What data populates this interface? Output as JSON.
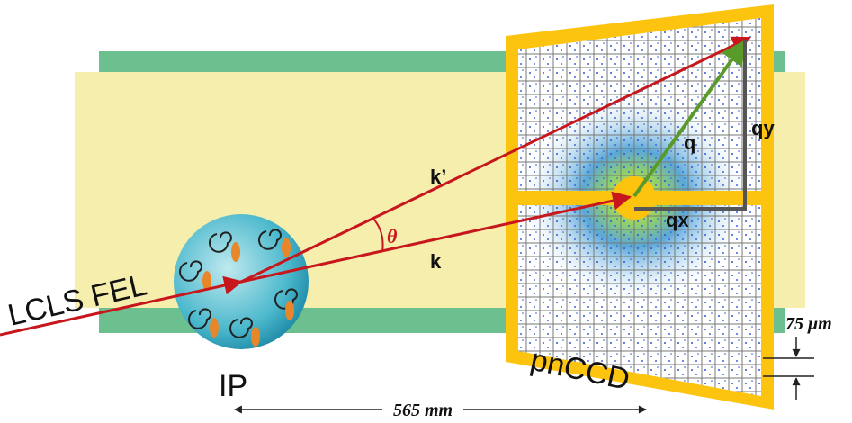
{
  "beams": {
    "k_prime": "k’",
    "theta": "θ",
    "k": "k"
  },
  "vectors": {
    "q": "q",
    "qy": "qy",
    "qx": "qx"
  },
  "source": "LCLS FEL",
  "interaction_point": "IP",
  "detector": "pnCCD",
  "pixel_size": "75 μm",
  "distance": "565 mm"
}
